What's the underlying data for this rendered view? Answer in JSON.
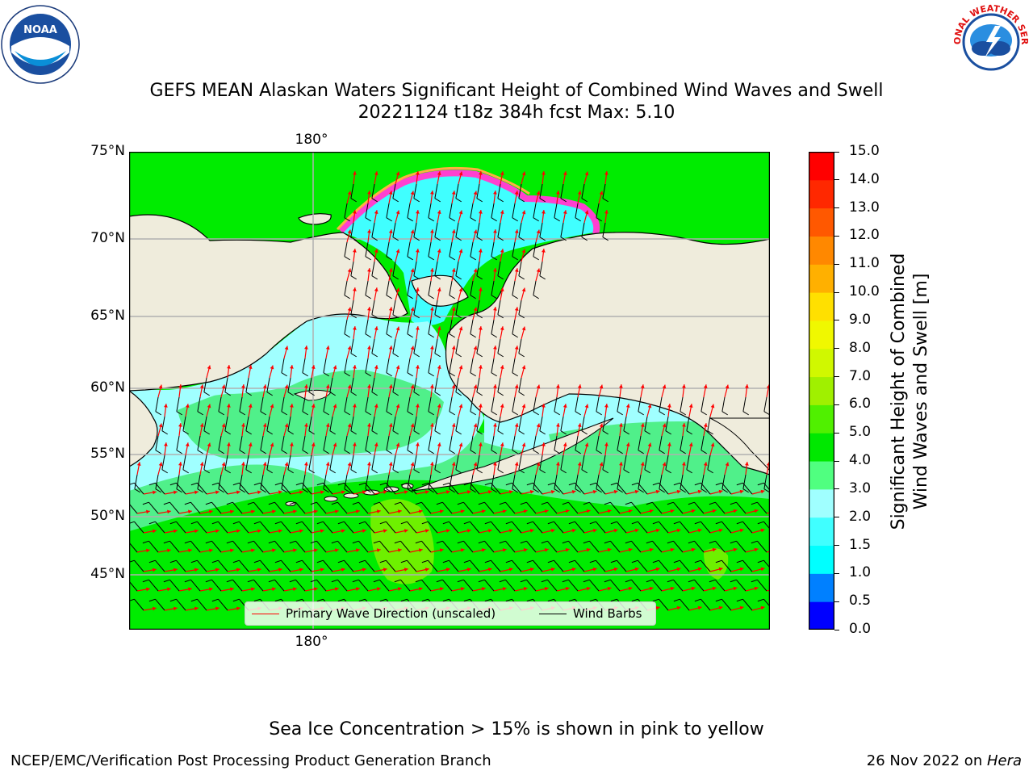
{
  "title_line1": "GEFS MEAN Alaskan Waters Significant Height of Combined Wind Waves and Swell",
  "title_line2": "20221124 t18z 384h fcst   Max: 5.10",
  "map": {
    "lat_labels": [
      "75°N",
      "70°N",
      "65°N",
      "60°N",
      "55°N",
      "50°N",
      "45°N"
    ],
    "lon_label_top": "180°",
    "lon_label_bottom": "180°",
    "land_color": "#efecdc",
    "gridline_color": "#b0b0b0"
  },
  "colorbar": {
    "label_line1": "Significant Height of Combined",
    "label_line2": "Wind Waves and Swell [m]",
    "ticks": [
      "0.0",
      "0.5",
      "1.0",
      "1.5",
      "2.0",
      "3.0",
      "4.0",
      "5.0",
      "6.0",
      "7.0",
      "8.0",
      "9.0",
      "10.0",
      "11.0",
      "12.0",
      "13.0",
      "14.0",
      "15.0"
    ],
    "colors": [
      "#0000ff",
      "#0080ff",
      "#00ffff",
      "#40ffff",
      "#a0ffff",
      "#50ff80",
      "#00e800",
      "#50f000",
      "#a0f000",
      "#d0f800",
      "#f0f800",
      "#ffe000",
      "#ffb000",
      "#ff8800",
      "#ff5800",
      "#ff2800",
      "#ff0000"
    ]
  },
  "legend": {
    "wave_direction": "Primary Wave Direction (unscaled)",
    "wind_barbs": "Wind Barbs",
    "wave_color": "#ff0000",
    "barb_color": "#000000"
  },
  "ice_note": "Sea Ice Concentration > 15% is shown in pink to yellow",
  "footer": {
    "left": "NCEP/EMC/Verification Post Processing Product Generation Branch",
    "right_date": "26 Nov 2022 on ",
    "right_host": "Hera"
  },
  "logos": {
    "noaa_text": "NOAA",
    "nws_text": "NATIONAL WEATHER SERVICE"
  }
}
